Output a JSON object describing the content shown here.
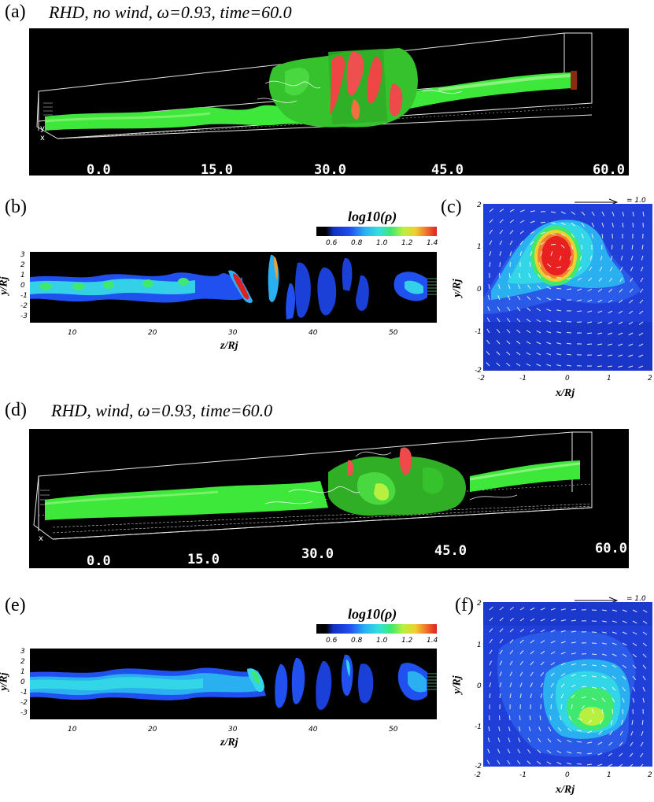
{
  "panel_a": {
    "label": "(a)",
    "title": "RHD, no wind, ω=0.93, time=60.0",
    "ticks": [
      "0.0",
      "15.0",
      "30.0",
      "45.0",
      "60.0"
    ]
  },
  "panel_b": {
    "label": "(b)",
    "colorbar_title": "log10(ρ)",
    "colorbar_ticks": [
      "0.6",
      "0.8",
      "1.0",
      "1.2",
      "1.4"
    ],
    "ylabel": "y/Rj",
    "xlabel": "z/Rj",
    "yticks": [
      "3",
      "2",
      "1",
      "0",
      "-1",
      "-2",
      "-3"
    ],
    "xticks": [
      "10",
      "20",
      "30",
      "40",
      "50"
    ]
  },
  "panel_c": {
    "label": "(c)",
    "arrow_label": "= 1.0",
    "ylabel": "y/Rj",
    "xlabel": "x/Rj",
    "yticks": [
      "2",
      "1",
      "0",
      "-1",
      "-2"
    ],
    "xticks": [
      "-2",
      "-1",
      "0",
      "1",
      "2"
    ]
  },
  "panel_d": {
    "label": "(d)",
    "title": "RHD, wind, ω=0.93, time=60.0",
    "ticks": [
      "0.0",
      "15.0",
      "30.0",
      "45.0",
      "60.0"
    ]
  },
  "panel_e": {
    "label": "(e)",
    "colorbar_title": "log10(ρ)",
    "colorbar_ticks": [
      "0.6",
      "0.8",
      "1.0",
      "1.2",
      "1.4"
    ],
    "ylabel": "y/Rj",
    "xlabel": "z/Rj",
    "yticks": [
      "3",
      "2",
      "1",
      "0",
      "-1",
      "-2",
      "-3"
    ],
    "xticks": [
      "10",
      "20",
      "30",
      "40",
      "50"
    ]
  },
  "panel_f": {
    "label": "(f)",
    "arrow_label": "= 1.0",
    "ylabel": "y/Rj",
    "xlabel": "x/Rj",
    "yticks": [
      "2",
      "1",
      "0",
      "-1",
      "-2"
    ],
    "xticks": [
      "-2",
      "-1",
      "0",
      "1",
      "2"
    ]
  },
  "colors": {
    "jet_green": "#3ee83a",
    "hot_red": "#ee3535",
    "field_blue": "#1f3fd8",
    "cyan": "#33d6e6"
  }
}
